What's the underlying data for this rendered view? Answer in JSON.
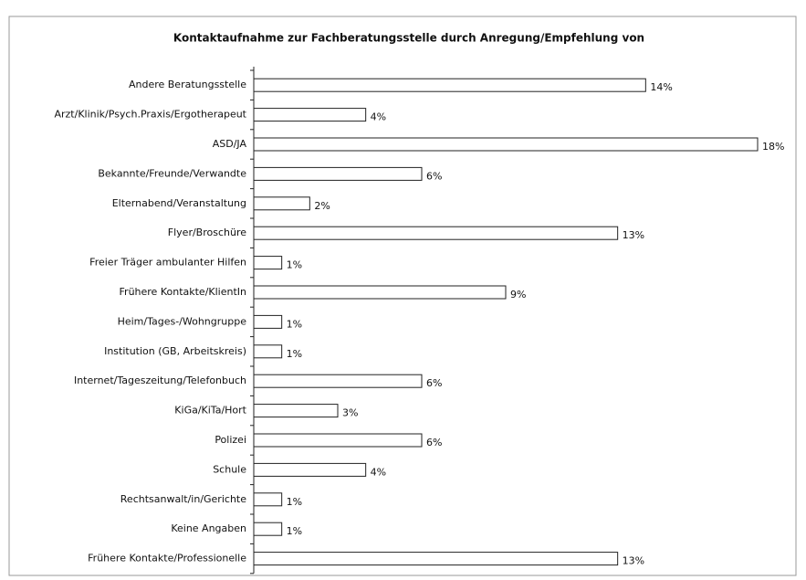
{
  "chart_data": {
    "type": "bar",
    "orientation": "horizontal",
    "title": "Kontaktaufnahme zur Fachberatungsstelle durch Anregung/Empfehlung von",
    "categories": [
      "Andere Beratungsstelle",
      "Arzt/Klinik/Psych.Praxis/Ergotherapeut",
      "ASD/JA",
      "Bekannte/Freunde/Verwandte",
      "Elternabend/Veranstaltung",
      "Flyer/Broschüre",
      "Freier Träger ambulanter Hilfen",
      "Frühere Kontakte/KlientIn",
      "Heim/Tages-/Wohngruppe",
      "Institution (GB, Arbeitskreis)",
      "Internet/Tageszeitung/Telefonbuch",
      "KiGa/KiTa/Hort",
      "Polizei",
      "Schule",
      "Rechtsanwalt/in/Gerichte",
      "Keine Angaben",
      "Frühere Kontakte/Professionelle"
    ],
    "values": [
      14,
      4,
      18,
      6,
      2,
      13,
      1,
      9,
      1,
      1,
      6,
      3,
      6,
      4,
      1,
      1,
      13
    ],
    "value_labels": [
      "14%",
      "4%",
      "18%",
      "6%",
      "2%",
      "13%",
      "1%",
      "9%",
      "1%",
      "1%",
      "6%",
      "3%",
      "6%",
      "4%",
      "1%",
      "1%",
      "13%"
    ],
    "color": "#ffffff",
    "xlim": [
      0,
      18
    ]
  }
}
